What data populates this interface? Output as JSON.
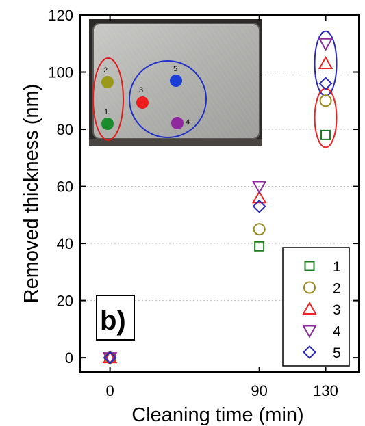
{
  "chart_data": {
    "type": "scatter",
    "xlabel": "Cleaning time (min)",
    "ylabel": "Removed thickness (nm)",
    "xlim": [
      -18,
      150
    ],
    "ylim": [
      -5,
      120
    ],
    "x_ticks": [
      0,
      90,
      130
    ],
    "y_ticks": [
      0,
      20,
      40,
      60,
      80,
      100,
      120
    ],
    "grid": "horizontal dotted lines at y ticks (upper region)",
    "legend_position": "bottom-right",
    "panel_label": "b)",
    "series": [
      {
        "name": "1",
        "marker": "square",
        "color": "#1e7d1e",
        "x": [
          0,
          90,
          130
        ],
        "y": [
          0,
          39,
          78
        ]
      },
      {
        "name": "2",
        "marker": "circle",
        "color": "#9b8a1c",
        "x": [
          0,
          90,
          130
        ],
        "y": [
          0,
          45,
          90
        ]
      },
      {
        "name": "3",
        "marker": "triangle-up",
        "color": "#ee2222",
        "x": [
          0,
          90,
          130
        ],
        "y": [
          0,
          56,
          103
        ]
      },
      {
        "name": "4",
        "marker": "triangle-down",
        "color": "#8a2a9a",
        "x": [
          0,
          90,
          130
        ],
        "y": [
          0,
          60,
          110
        ]
      },
      {
        "name": "5",
        "marker": "diamond",
        "color": "#2a2ab8",
        "x": [
          0,
          90,
          130
        ],
        "y": [
          0,
          53,
          96
        ]
      }
    ],
    "annotations": [
      {
        "shape": "ellipse",
        "color": "#2a2ab8",
        "around": "series 3, 4, 5 at x=130"
      },
      {
        "shape": "ellipse",
        "color": "#ee2222",
        "around": "series 1, 2 at x=130"
      }
    ],
    "inset_photo": {
      "spots": [
        {
          "label": "1",
          "color": "#1a8c2c"
        },
        {
          "label": "2",
          "color": "#9a9a18"
        },
        {
          "label": "3",
          "color": "#ee1c1c"
        },
        {
          "label": "4",
          "color": "#8e2a9e"
        },
        {
          "label": "5",
          "color": "#1a3ed6"
        }
      ],
      "group_circles": [
        {
          "color": "#e01c1c",
          "groups": [
            "1",
            "2"
          ]
        },
        {
          "color": "#2030c8",
          "groups": [
            "3",
            "4",
            "5"
          ]
        }
      ]
    }
  }
}
